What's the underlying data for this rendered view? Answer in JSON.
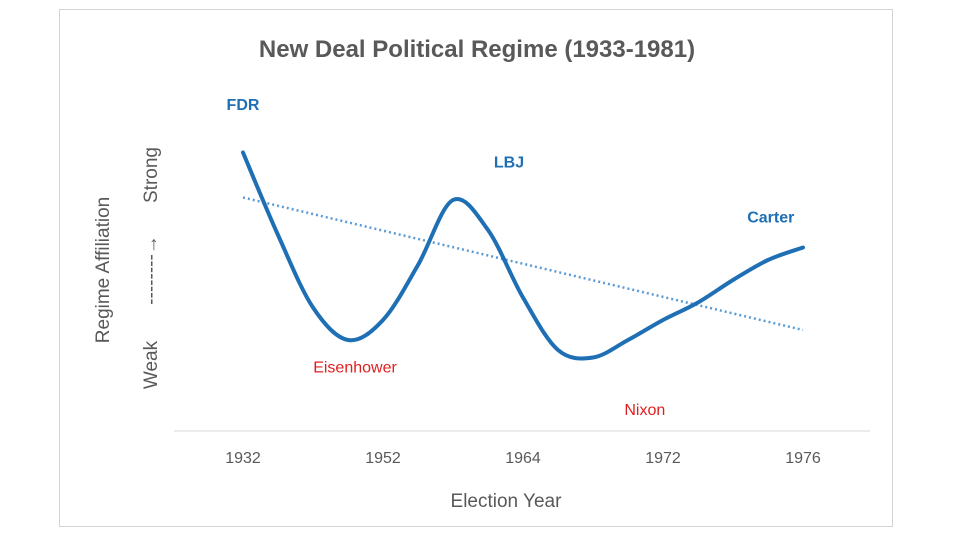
{
  "colors": {
    "line": "#1f6fb5",
    "trend": "#5b9bd5",
    "strong": "#1f6fb5",
    "weak": "#e02020",
    "text": "#595959",
    "axis": "#d9d9d9"
  },
  "chart_data": {
    "type": "line",
    "title": "New Deal Political Regime (1933-1981)",
    "xlabel": "Election Year",
    "ylabel": {
      "weak": "Weak",
      "arrow": "--------→",
      "strong": "Strong",
      "title": "Regime Affiliation"
    },
    "categories": [
      "1932",
      "1952",
      "1964",
      "1972",
      "1976"
    ],
    "ylim": [
      0,
      10
    ],
    "series": [
      {
        "name": "Regime Affiliation",
        "style": "solid",
        "x": [
          0,
          0.25,
          0.5,
          0.75,
          1.0,
          1.25,
          1.5,
          1.75,
          2.0,
          2.25,
          2.5,
          2.75,
          3.0,
          3.25,
          3.5,
          3.75,
          4.0
        ],
        "y": [
          9.5,
          6.2,
          3.3,
          2.0,
          2.8,
          5.0,
          7.6,
          6.4,
          3.7,
          1.6,
          1.3,
          2.0,
          2.8,
          3.5,
          4.4,
          5.2,
          5.7
        ]
      },
      {
        "name": "Trend",
        "style": "dotted",
        "x": [
          0,
          4
        ],
        "y": [
          7.7,
          2.4
        ]
      }
    ],
    "annotations": [
      {
        "label": "FDR",
        "x": 0,
        "y": 11.2,
        "color": "strong",
        "bold": true
      },
      {
        "label": "Eisenhower",
        "x": 0.8,
        "y": 0.7,
        "color": "weak",
        "bold": false
      },
      {
        "label": "LBJ",
        "x": 1.9,
        "y": 8.9,
        "color": "strong",
        "bold": true
      },
      {
        "label": "Nixon",
        "x": 2.87,
        "y": -1.0,
        "color": "weak",
        "bold": false
      },
      {
        "label": "Carter",
        "x": 3.77,
        "y": 6.7,
        "color": "strong",
        "bold": true
      }
    ]
  }
}
